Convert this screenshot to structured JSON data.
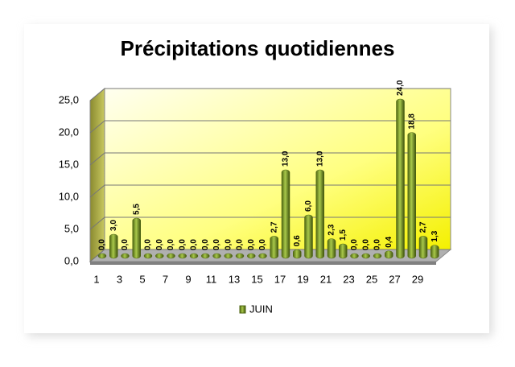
{
  "chart_data": {
    "type": "bar",
    "title": "Précipitations quotidiennes",
    "categories": [
      "1",
      null,
      "3",
      null,
      "5",
      null,
      "7",
      null,
      "9",
      null,
      "11",
      null,
      "13",
      null,
      "15",
      null,
      "17",
      null,
      "19",
      null,
      "21",
      null,
      "23",
      null,
      "25",
      null,
      "27",
      null,
      "29",
      null
    ],
    "series": [
      {
        "name": "JUIN",
        "color": "#7a9a1e",
        "values": [
          0,
          3,
          0,
          5.5,
          0,
          0,
          0,
          0,
          0,
          0,
          0,
          0,
          0,
          0,
          0,
          2.7,
          13,
          0.6,
          6,
          13,
          2.3,
          1.5,
          0,
          0,
          0,
          0.4,
          24,
          18.8,
          2.7,
          1.3
        ],
        "value_labels": [
          "0,0",
          "3,0",
          "0,0",
          "5,5",
          "0,0",
          "0,0",
          "0,0",
          "0,0",
          "0,0",
          "0,0",
          "0,0",
          "0,0",
          "0,0",
          "0,0",
          "0,0",
          "2,7",
          "13,0",
          "0,6",
          "6,0",
          "13,0",
          "2,3",
          "1,5",
          "0,0",
          "0,0",
          "0,0",
          "0,4",
          "24,0",
          "18,8",
          "2,7",
          "1,3"
        ]
      }
    ],
    "ylim": [
      0,
      25
    ],
    "yticks": [
      {
        "value": 0,
        "label": "0,0"
      },
      {
        "value": 5,
        "label": "5,0"
      },
      {
        "value": 10,
        "label": "10,0"
      },
      {
        "value": 15,
        "label": "15,0"
      },
      {
        "value": 20,
        "label": "20,0"
      },
      {
        "value": 25,
        "label": "25,0"
      }
    ],
    "grid": true,
    "legend": "bottom"
  }
}
